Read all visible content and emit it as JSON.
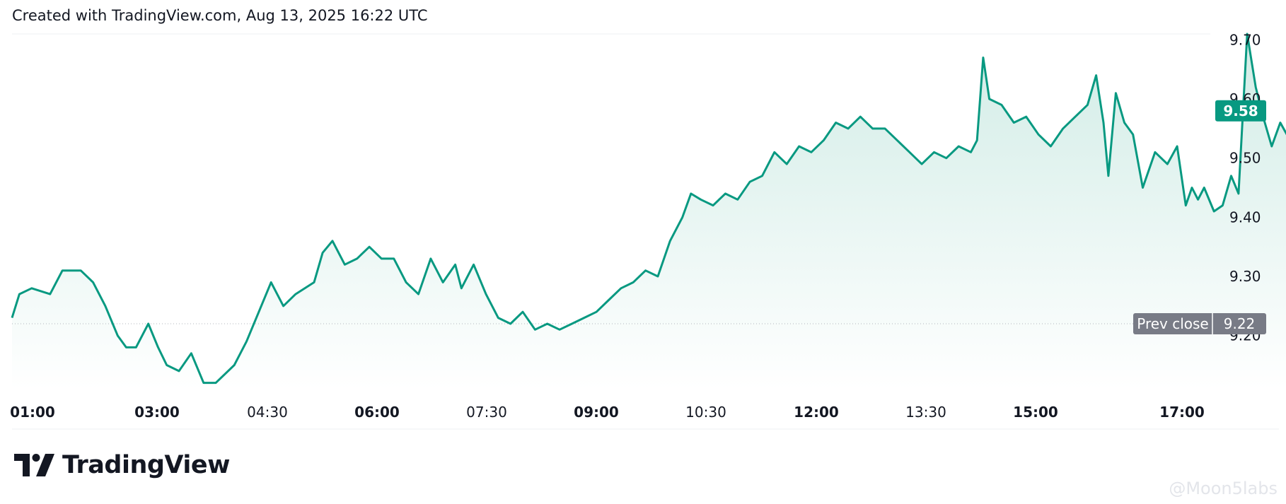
{
  "header": {
    "caption": "Created with TradingView.com, Aug 13, 2025 16:22 UTC"
  },
  "brand": {
    "name": "TradingView",
    "logo_icon": "tradingview-logo-icon"
  },
  "watermark": {
    "text": "@Moon5labs"
  },
  "colors": {
    "line": "#089981",
    "fill_top": "#d1ece6",
    "fill_bottom": "#ffffff",
    "badge": "#089981",
    "prev_close_badge": "#787b86"
  },
  "chart_data": {
    "type": "area",
    "title": "",
    "xlabel": "",
    "ylabel": "",
    "x_ticks": [
      {
        "label": "01:00",
        "bold": true
      },
      {
        "label": "03:00",
        "bold": true
      },
      {
        "label": "04:30",
        "bold": false
      },
      {
        "label": "06:00",
        "bold": true
      },
      {
        "label": "07:30",
        "bold": false
      },
      {
        "label": "09:00",
        "bold": true
      },
      {
        "label": "10:30",
        "bold": false
      },
      {
        "label": "12:00",
        "bold": true
      },
      {
        "label": "13:30",
        "bold": false
      },
      {
        "label": "15:00",
        "bold": true
      },
      {
        "label": "17:00",
        "bold": true
      }
    ],
    "y_ticks": [
      "9.20",
      "9.30",
      "9.40",
      "9.50",
      "9.60",
      "9.70"
    ],
    "ylim": [
      9.11,
      9.71
    ],
    "xlim": [
      "00:59",
      "17:15"
    ],
    "series": [
      {
        "values": [
          [
            "00:59",
            9.23
          ],
          [
            "01:05",
            9.27
          ],
          [
            "01:15",
            9.28
          ],
          [
            "01:30",
            9.27
          ],
          [
            "01:40",
            9.31
          ],
          [
            "01:55",
            9.31
          ],
          [
            "02:05",
            9.29
          ],
          [
            "02:15",
            9.25
          ],
          [
            "02:25",
            9.2
          ],
          [
            "02:32",
            9.18
          ],
          [
            "02:40",
            9.18
          ],
          [
            "02:50",
            9.22
          ],
          [
            "02:58",
            9.18
          ],
          [
            "03:05",
            9.15
          ],
          [
            "03:15",
            9.14
          ],
          [
            "03:25",
            9.17
          ],
          [
            "03:35",
            9.12
          ],
          [
            "03:45",
            9.12
          ],
          [
            "04:00",
            9.15
          ],
          [
            "04:10",
            9.19
          ],
          [
            "04:20",
            9.24
          ],
          [
            "04:30",
            9.29
          ],
          [
            "04:40",
            9.25
          ],
          [
            "04:50",
            9.27
          ],
          [
            "05:05",
            9.29
          ],
          [
            "05:12",
            9.34
          ],
          [
            "05:20",
            9.36
          ],
          [
            "05:30",
            9.32
          ],
          [
            "05:40",
            9.33
          ],
          [
            "05:50",
            9.35
          ],
          [
            "06:00",
            9.33
          ],
          [
            "06:10",
            9.33
          ],
          [
            "06:20",
            9.29
          ],
          [
            "06:30",
            9.27
          ],
          [
            "06:40",
            9.33
          ],
          [
            "06:50",
            9.29
          ],
          [
            "07:00",
            9.32
          ],
          [
            "07:05",
            9.28
          ],
          [
            "07:15",
            9.32
          ],
          [
            "07:25",
            9.27
          ],
          [
            "07:35",
            9.23
          ],
          [
            "07:45",
            9.22
          ],
          [
            "07:55",
            9.24
          ],
          [
            "08:05",
            9.21
          ],
          [
            "08:15",
            9.22
          ],
          [
            "08:25",
            9.21
          ],
          [
            "08:35",
            9.22
          ],
          [
            "08:45",
            9.23
          ],
          [
            "08:55",
            9.24
          ],
          [
            "09:05",
            9.26
          ],
          [
            "09:15",
            9.28
          ],
          [
            "09:25",
            9.29
          ],
          [
            "09:35",
            9.31
          ],
          [
            "09:45",
            9.3
          ],
          [
            "09:55",
            9.36
          ],
          [
            "10:05",
            9.4
          ],
          [
            "10:12",
            9.44
          ],
          [
            "10:20",
            9.43
          ],
          [
            "10:30",
            9.42
          ],
          [
            "10:40",
            9.44
          ],
          [
            "10:50",
            9.43
          ],
          [
            "11:00",
            9.46
          ],
          [
            "11:10",
            9.47
          ],
          [
            "11:20",
            9.51
          ],
          [
            "11:30",
            9.49
          ],
          [
            "11:40",
            9.52
          ],
          [
            "11:50",
            9.51
          ],
          [
            "12:00",
            9.53
          ],
          [
            "12:10",
            9.56
          ],
          [
            "12:20",
            9.55
          ],
          [
            "12:30",
            9.57
          ],
          [
            "12:40",
            9.55
          ],
          [
            "12:50",
            9.55
          ],
          [
            "13:00",
            9.53
          ],
          [
            "13:10",
            9.51
          ],
          [
            "13:20",
            9.49
          ],
          [
            "13:30",
            9.51
          ],
          [
            "13:40",
            9.5
          ],
          [
            "13:50",
            9.52
          ],
          [
            "14:00",
            9.51
          ],
          [
            "14:05",
            9.53
          ],
          [
            "14:10",
            9.67
          ],
          [
            "14:15",
            9.6
          ],
          [
            "14:25",
            9.59
          ],
          [
            "14:35",
            9.56
          ],
          [
            "14:45",
            9.57
          ],
          [
            "14:55",
            9.54
          ],
          [
            "15:05",
            9.52
          ],
          [
            "15:15",
            9.55
          ],
          [
            "15:25",
            9.57
          ],
          [
            "15:35",
            9.59
          ],
          [
            "15:42",
            9.64
          ],
          [
            "15:48",
            9.56
          ],
          [
            "15:52",
            9.47
          ],
          [
            "15:58",
            9.61
          ],
          [
            "16:05",
            9.56
          ],
          [
            "16:12",
            9.54
          ],
          [
            "16:20",
            9.45
          ],
          [
            "16:30",
            9.51
          ],
          [
            "16:40",
            9.49
          ],
          [
            "16:48",
            9.52
          ],
          [
            "16:55",
            9.42
          ],
          [
            "17:00",
            9.45
          ]
        ]
      }
    ],
    "tail_values": [
      [
        "17:05",
        9.43
      ],
      [
        "17:10",
        9.45
      ],
      [
        "17:18",
        9.41
      ],
      [
        "17:25",
        9.42
      ],
      [
        "17:32",
        9.47
      ],
      [
        "17:38",
        9.44
      ],
      [
        "17:45",
        9.71
      ],
      [
        "17:52",
        9.62
      ],
      [
        "17:58",
        9.57
      ],
      [
        "18:05",
        9.52
      ],
      [
        "18:12",
        9.56
      ],
      [
        "18:20",
        9.53
      ],
      [
        "18:28",
        9.56
      ],
      [
        "18:32",
        9.58
      ]
    ],
    "last_price": "9.58",
    "prev_close": {
      "label": "Prev close",
      "value": "9.22"
    }
  }
}
